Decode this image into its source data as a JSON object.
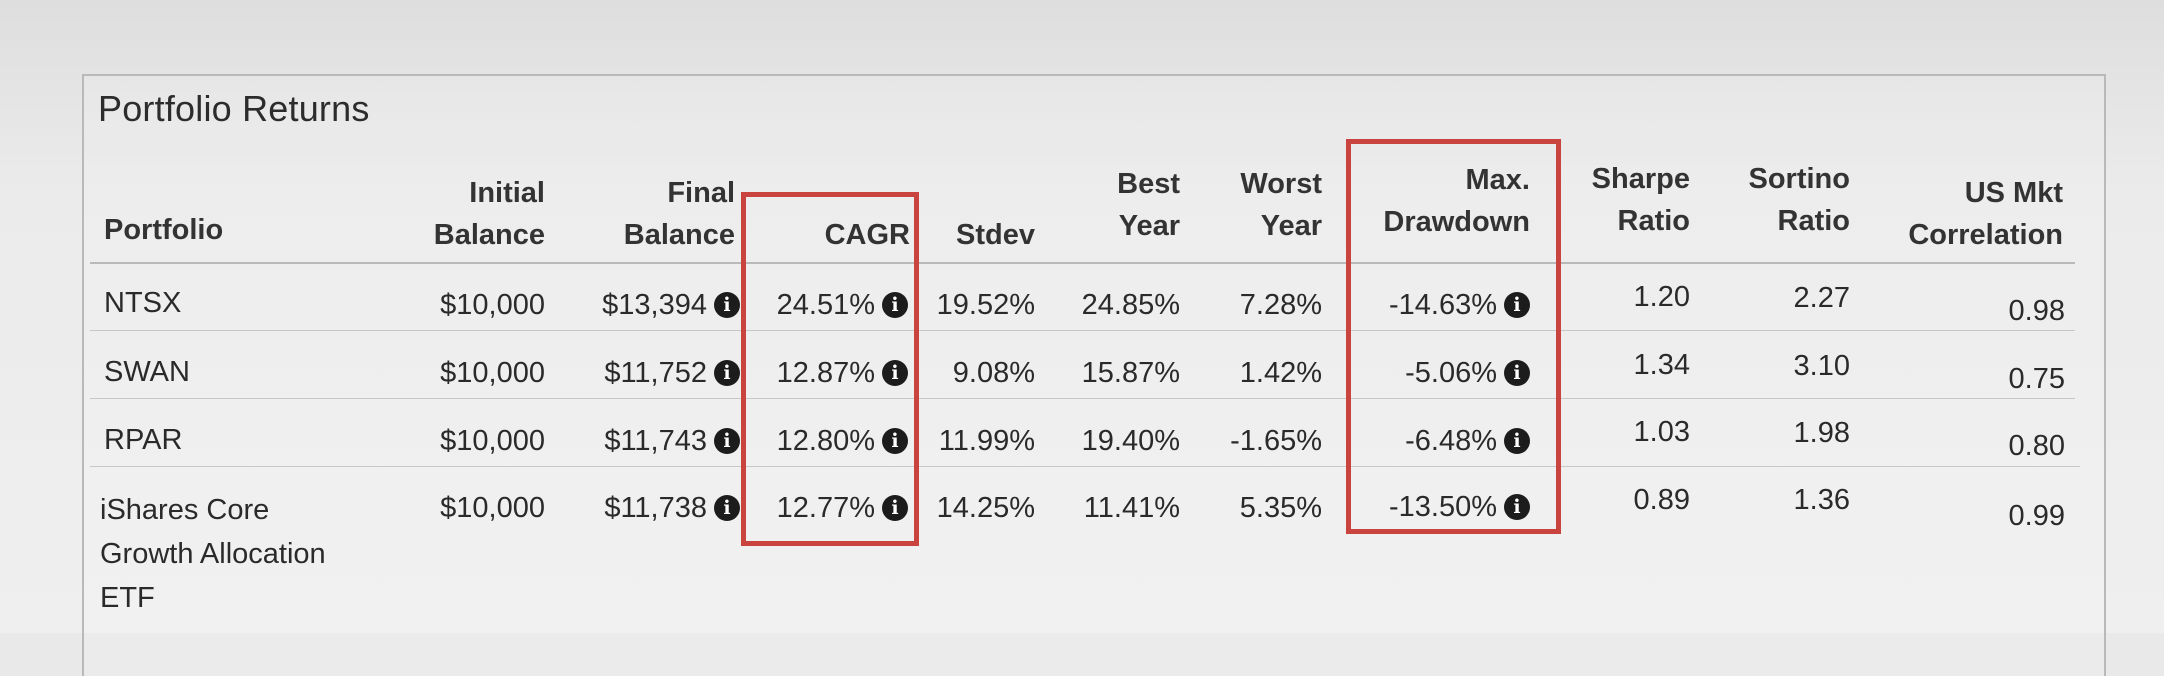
{
  "panel": {
    "title": "Portfolio Returns"
  },
  "columns": {
    "portfolio": [
      "Portfolio"
    ],
    "initial_balance": [
      "Initial",
      "Balance"
    ],
    "final_balance": [
      "Final",
      "Balance"
    ],
    "cagr": [
      "CAGR"
    ],
    "stdev": [
      "Stdev"
    ],
    "best_year": [
      "Best",
      "Year"
    ],
    "worst_year": [
      "Worst",
      "Year"
    ],
    "max_drawdown": [
      "Max.",
      "Drawdown"
    ],
    "sharpe_ratio": [
      "Sharpe",
      "Ratio"
    ],
    "sortino_ratio": [
      "Sortino",
      "Ratio"
    ],
    "us_mkt_correlation": [
      "US Mkt",
      "Correlation"
    ]
  },
  "info_icon_glyph": "i",
  "rows": [
    {
      "portfolio": [
        "NTSX"
      ],
      "initial_balance": "$10,000",
      "final_balance": "$13,394",
      "cagr": "24.51%",
      "stdev": "19.52%",
      "best_year": "24.85%",
      "worst_year": "7.28%",
      "max_drawdown": "-14.63%",
      "sharpe_ratio": "1.20",
      "sortino_ratio": "2.27",
      "us_mkt_correlation": "0.98"
    },
    {
      "portfolio": [
        "SWAN"
      ],
      "initial_balance": "$10,000",
      "final_balance": "$11,752",
      "cagr": "12.87%",
      "stdev": "9.08%",
      "best_year": "15.87%",
      "worst_year": "1.42%",
      "max_drawdown": "-5.06%",
      "sharpe_ratio": "1.34",
      "sortino_ratio": "3.10",
      "us_mkt_correlation": "0.75"
    },
    {
      "portfolio": [
        "RPAR"
      ],
      "initial_balance": "$10,000",
      "final_balance": "$11,743",
      "cagr": "12.80%",
      "stdev": "11.99%",
      "best_year": "19.40%",
      "worst_year": "-1.65%",
      "max_drawdown": "-6.48%",
      "sharpe_ratio": "1.03",
      "sortino_ratio": "1.98",
      "us_mkt_correlation": "0.80"
    },
    {
      "portfolio": [
        "iShares Core",
        "Growth Allocation",
        "ETF"
      ],
      "initial_balance": "$10,000",
      "final_balance": "$11,738",
      "cagr": "12.77%",
      "stdev": "14.25%",
      "best_year": "11.41%",
      "worst_year": "5.35%",
      "max_drawdown": "-13.50%",
      "sharpe_ratio": "0.89",
      "sortino_ratio": "1.36",
      "us_mkt_correlation": "0.99"
    }
  ],
  "colors": {
    "highlight_box": "#c9433f",
    "info_icon": "#1c1c1c",
    "rule": "#b9b9b9"
  }
}
